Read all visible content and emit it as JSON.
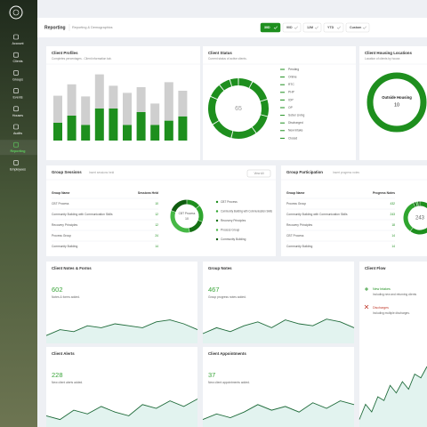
{
  "sidebar": {
    "nav": [
      "Account",
      "Clients",
      "Groups",
      "Events",
      "Houses",
      "Audits",
      "Reporting",
      "Employees"
    ],
    "active": 6
  },
  "header": {
    "title": "Reporting",
    "subtitle": "Reporting & Demographics",
    "ranges": [
      "30D",
      "90D",
      "12M",
      "YTD",
      "Custom"
    ],
    "active_range": 0
  },
  "client_profiles": {
    "title": "Client Profiles",
    "subtitle": "Completes percentages - Client information tab.",
    "chart": {
      "type": "bar",
      "ylim": [
        0,
        100
      ],
      "series": [
        {
          "color": "#1e8f1e",
          "values": [
            25,
            35,
            22,
            45,
            45,
            22,
            40,
            22,
            28,
            34
          ]
        },
        {
          "color": "#cfcfcf",
          "values": [
            38,
            44,
            40,
            48,
            32,
            45,
            35,
            30,
            54,
            36
          ]
        }
      ]
    }
  },
  "client_status": {
    "title": "Client Status",
    "subtitle": "Current status of active clients.",
    "total": 65,
    "chart": {
      "type": "donut",
      "color": "#1e8f1e",
      "categories": [
        "Pending",
        "Online",
        "RTC",
        "PHP",
        "IOP",
        "OP",
        "Sober Living",
        "Discharged",
        "New Intake",
        "Closed"
      ],
      "values": [
        5,
        8,
        6,
        7,
        9,
        8,
        10,
        5,
        4,
        3
      ]
    }
  },
  "housing": {
    "title": "Client Housing Locations",
    "subtitle": "Location of clients by house.",
    "center_label": "Outside Housing",
    "center_value": 10,
    "color": "#1e8f1e"
  },
  "group_sessions": {
    "title": "Group Sessions",
    "subtitle": "Insert sessions held",
    "button": "View All",
    "columns": [
      "Group Name",
      "Sessions Held"
    ],
    "rows": [
      [
        "CBT Process",
        10
      ],
      [
        "Community Building with Communication Skills",
        12
      ],
      [
        "Recovery Principles",
        12
      ],
      [
        "Process Group",
        24
      ],
      [
        "Community Building",
        14
      ]
    ],
    "chart": {
      "type": "donut",
      "colors": [
        "#1e8f1e",
        "#2fa52f",
        "#157015",
        "#45b845",
        "#0f5c0f"
      ]
    }
  },
  "group_participation": {
    "title": "Group Participation",
    "subtitle": "Insert progress notes",
    "columns": [
      "Group Name",
      "Progress Notes"
    ],
    "rows": [
      [
        "Process Group",
        432
      ],
      [
        "Community Building with Communication Skills",
        243
      ],
      [
        "Recovery Principles",
        18
      ],
      [
        "CBT Process",
        14
      ],
      [
        "Community Building",
        14
      ]
    ],
    "chart": {
      "type": "donut",
      "colors": [
        "#1e8f1e",
        "#2fa52f",
        "#157015",
        "#45b845",
        "#0f5c0f"
      ]
    }
  },
  "notes_forms": {
    "title": "Client Notes & Forms",
    "value": 602,
    "description": "Notes & forms added.",
    "chart": {
      "type": "area",
      "ylim": [
        0,
        100
      ],
      "values": [
        20,
        35,
        30,
        45,
        40,
        50,
        45,
        40,
        55,
        60,
        50,
        35
      ]
    }
  },
  "group_notes": {
    "title": "Group Notes",
    "value": 467,
    "description": "Group progress notes added.",
    "chart": {
      "type": "area",
      "ylim": [
        0,
        100
      ],
      "values": [
        25,
        40,
        30,
        45,
        55,
        40,
        60,
        50,
        45,
        62,
        55,
        40
      ]
    }
  },
  "client_alerts": {
    "title": "Client Alerts",
    "value": 228,
    "description": "New client alerts added.",
    "chart": {
      "type": "area",
      "ylim": [
        0,
        100
      ],
      "values": [
        30,
        20,
        45,
        35,
        55,
        40,
        30,
        60,
        50,
        70,
        55,
        75
      ]
    }
  },
  "client_appointments": {
    "title": "Client Appointments",
    "value": 37,
    "description": "New client appointments added.",
    "chart": {
      "type": "area",
      "ylim": [
        0,
        100
      ],
      "values": [
        20,
        35,
        25,
        40,
        60,
        45,
        55,
        40,
        65,
        50,
        70,
        60
      ]
    }
  },
  "client_flow": {
    "title": "Client Flow",
    "items": [
      {
        "label": "New Intakes",
        "description": "Including new and returning clients"
      },
      {
        "label": "Discharges",
        "description": "Including multiple discharges."
      }
    ],
    "chart": {
      "type": "area",
      "ylim": [
        0,
        100
      ],
      "values": [
        10,
        30,
        20,
        40,
        35,
        55,
        45,
        60,
        50,
        70,
        65,
        80
      ]
    }
  }
}
